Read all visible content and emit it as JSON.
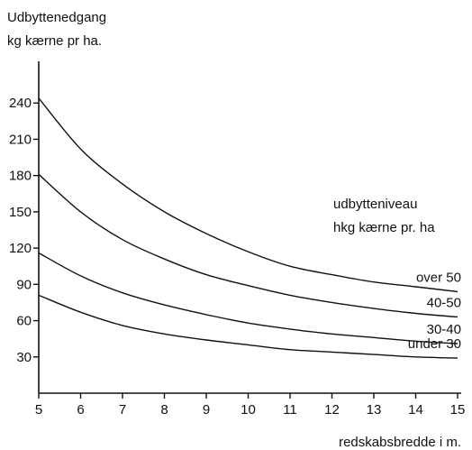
{
  "chart_data": {
    "type": "line",
    "ylabel_lines": [
      "Udbyttenedgang",
      "kg kærne pr ha."
    ],
    "xlabel": "redskabsbredde i m.",
    "legend_title_lines": [
      "udbytteniveau",
      "hkg kærne pr. ha"
    ],
    "xlim": [
      5,
      15
    ],
    "ylim": [
      0,
      270
    ],
    "x_ticks": [
      5,
      6,
      7,
      8,
      9,
      10,
      11,
      12,
      13,
      14,
      15
    ],
    "y_ticks": [
      30,
      60,
      90,
      120,
      150,
      180,
      210,
      240
    ],
    "grid": false,
    "x": [
      5,
      6,
      7,
      8,
      9,
      10,
      11,
      12,
      13,
      14,
      15
    ],
    "series": [
      {
        "name": "over 50",
        "values": [
          244,
          202,
          173,
          150,
          132,
          117,
          105,
          98,
          92,
          88,
          84
        ]
      },
      {
        "name": "40-50",
        "values": [
          181,
          150,
          127,
          111,
          98,
          89,
          81,
          75,
          70,
          66,
          63
        ]
      },
      {
        "name": "30-40",
        "values": [
          116,
          97,
          83,
          73,
          65,
          58,
          53,
          49,
          46,
          43,
          41
        ]
      },
      {
        "name": "under 30",
        "values": [
          81,
          67,
          56,
          49,
          44,
          40,
          36,
          34,
          32,
          30,
          29
        ]
      }
    ]
  }
}
